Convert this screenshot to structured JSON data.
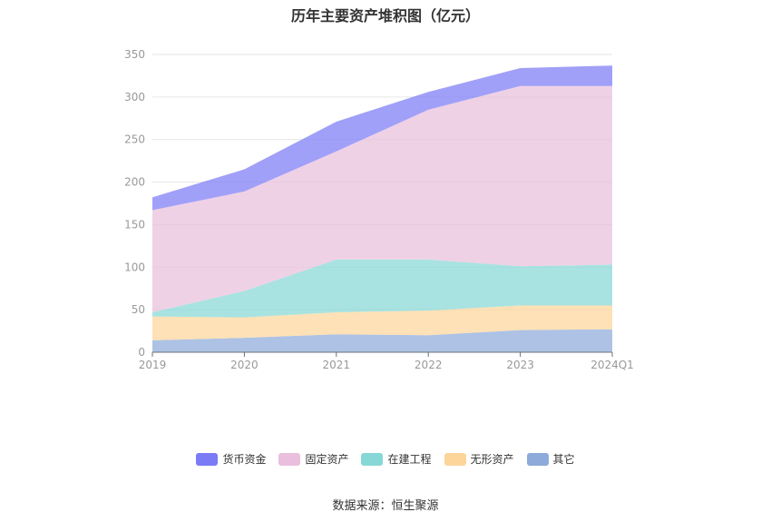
{
  "chart_data": {
    "type": "area",
    "stacked": true,
    "title": "历年主要资产堆积图（亿元）",
    "categories": [
      "2019",
      "2020",
      "2021",
      "2022",
      "2023",
      "2024Q1"
    ],
    "ylim": [
      0,
      350
    ],
    "yticks": [
      0,
      50,
      100,
      150,
      200,
      250,
      300,
      350
    ],
    "series": [
      {
        "name": "其它",
        "color": "#8eaadb",
        "values": [
          14,
          17,
          21,
          20,
          26,
          27
        ]
      },
      {
        "name": "无形资产",
        "color": "#fdd59a",
        "values": [
          28,
          24,
          26,
          29,
          29,
          28
        ]
      },
      {
        "name": "在建工程",
        "color": "#86d8d6",
        "values": [
          5,
          31,
          62,
          60,
          46,
          48
        ]
      },
      {
        "name": "固定资产",
        "color": "#e9bfdd",
        "values": [
          120,
          117,
          127,
          176,
          212,
          210
        ]
      },
      {
        "name": "货币资金",
        "color": "#7b7bf5",
        "values": [
          15,
          26,
          35,
          21,
          21,
          24
        ]
      }
    ],
    "legend_position": "bottom-center",
    "grid": true
  },
  "source": "数据来源：恒生聚源"
}
